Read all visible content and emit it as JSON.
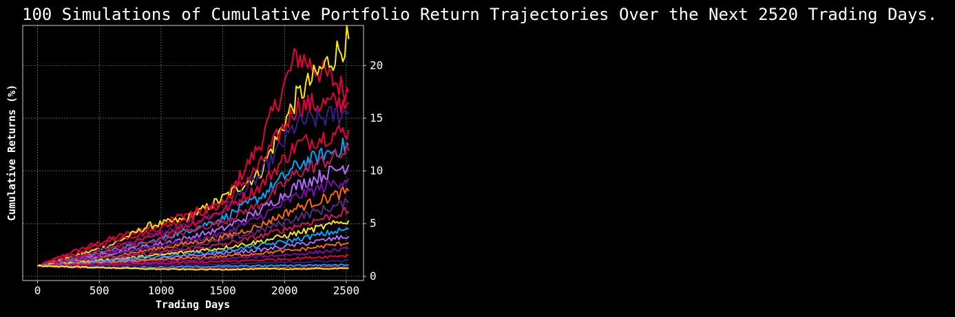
{
  "chart_data": {
    "type": "line",
    "title": "100 Simulations of Cumulative Portfolio Return Trajectories Over the Next 2520 Trading Days.",
    "xlabel": "Trading Days",
    "ylabel": "Cumulative Returns (%)",
    "xlim": [
      -120,
      2640
    ],
    "ylim": [
      -0.4,
      23.8
    ],
    "xticks": [
      0,
      500,
      1000,
      1500,
      2000,
      2500
    ],
    "yticks": [
      0,
      5,
      10,
      15,
      20
    ],
    "y_axis_side": "right",
    "grid": true,
    "background": "#000000",
    "palette": [
      "#e8003d",
      "#ffea00",
      "#b56bff",
      "#7a0fa8",
      "#ff6a00",
      "#00a8ff",
      "#3a1f8a",
      "#c2185b",
      "#5a2d82",
      "#d4145a"
    ],
    "n_simulations": 100,
    "start_value": 1.0,
    "x": [
      0,
      300,
      600,
      900,
      1200,
      1500,
      1800,
      2100,
      2520
    ],
    "series": [
      {
        "values": [
          1.0,
          2.4,
          3.6,
          4.6,
          5.9,
          6.8,
          12.5,
          21.0,
          17.5
        ],
        "color": "#e8003d"
      },
      {
        "values": [
          1.0,
          1.9,
          3.0,
          4.8,
          5.4,
          7.4,
          9.8,
          17.0,
          22.5
        ],
        "color": "#ffea00"
      },
      {
        "values": [
          1.0,
          2.1,
          3.4,
          4.2,
          5.5,
          6.9,
          10.5,
          16.2,
          16.5
        ],
        "color": "#e8003d"
      },
      {
        "values": [
          1.0,
          1.8,
          2.8,
          3.8,
          4.8,
          6.2,
          9.5,
          14.5,
          15.6
        ],
        "color": "#3a1f8a"
      },
      {
        "values": [
          1.0,
          1.7,
          2.7,
          3.6,
          4.8,
          6.2,
          8.5,
          12.5,
          13.9
        ],
        "color": "#e8003d"
      },
      {
        "values": [
          1.0,
          1.6,
          2.5,
          3.2,
          4.3,
          5.5,
          7.5,
          10.5,
          12.5
        ],
        "color": "#00a8ff"
      },
      {
        "values": [
          1.0,
          1.6,
          2.4,
          3.2,
          4.2,
          5.2,
          6.8,
          9.8,
          11.9
        ],
        "color": "#c2185b"
      },
      {
        "values": [
          1.0,
          1.5,
          2.2,
          2.9,
          3.6,
          4.5,
          6.2,
          8.6,
          10.6
        ],
        "color": "#b56bff"
      },
      {
        "values": [
          1.0,
          1.5,
          2.1,
          2.8,
          3.3,
          4.0,
          5.6,
          7.6,
          9.3
        ],
        "color": "#7a0fa8"
      },
      {
        "values": [
          1.0,
          1.4,
          1.9,
          2.5,
          3.1,
          3.7,
          4.8,
          6.5,
          8.1
        ],
        "color": "#ff6a00"
      },
      {
        "values": [
          1.0,
          1.4,
          1.8,
          2.3,
          2.8,
          3.4,
          4.3,
          5.6,
          7.0
        ],
        "color": "#5a2d82"
      },
      {
        "values": [
          1.0,
          1.3,
          1.7,
          2.1,
          2.5,
          3.0,
          3.8,
          4.8,
          6.2
        ],
        "color": "#d4145a"
      },
      {
        "values": [
          1.0,
          1.3,
          1.6,
          1.9,
          2.3,
          2.7,
          3.3,
          4.1,
          5.3
        ],
        "color": "#ffea00"
      },
      {
        "values": [
          1.0,
          1.25,
          1.5,
          1.8,
          2.1,
          2.4,
          2.9,
          3.5,
          4.5
        ],
        "color": "#00a8ff"
      },
      {
        "values": [
          1.0,
          1.2,
          1.4,
          1.6,
          1.9,
          2.2,
          2.5,
          3.0,
          3.8
        ],
        "color": "#b56bff"
      },
      {
        "values": [
          1.0,
          1.15,
          1.3,
          1.5,
          1.7,
          1.9,
          2.2,
          2.5,
          3.2
        ],
        "color": "#ff6a00"
      },
      {
        "values": [
          1.0,
          1.1,
          1.2,
          1.35,
          1.5,
          1.65,
          1.9,
          2.1,
          2.6
        ],
        "color": "#7a0fa8"
      },
      {
        "values": [
          1.0,
          1.05,
          1.1,
          1.2,
          1.3,
          1.4,
          1.55,
          1.7,
          2.0
        ],
        "color": "#e8003d"
      },
      {
        "values": [
          1.0,
          0.95,
          1.0,
          1.05,
          1.1,
          1.15,
          1.25,
          1.35,
          1.5
        ],
        "color": "#3a1f8a"
      },
      {
        "values": [
          1.0,
          0.9,
          0.85,
          0.85,
          0.9,
          0.95,
          1.0,
          1.05,
          1.1
        ],
        "color": "#00a8ff"
      },
      {
        "values": [
          1.0,
          0.85,
          0.8,
          0.75,
          0.75,
          0.8,
          0.8,
          0.85,
          0.9
        ],
        "color": "#c2185b"
      },
      {
        "values": [
          1.0,
          0.9,
          0.8,
          0.7,
          0.65,
          0.65,
          0.7,
          0.7,
          0.75
        ],
        "color": "#ffea00"
      }
    ]
  }
}
